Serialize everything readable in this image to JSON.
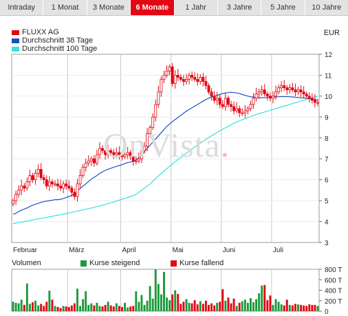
{
  "tabs": [
    {
      "label": "Intraday",
      "active": false
    },
    {
      "label": "1 Monat",
      "active": false
    },
    {
      "label": "3 Monate",
      "active": false
    },
    {
      "label": "6 Monate",
      "active": true
    },
    {
      "label": "1 Jahr",
      "active": false
    },
    {
      "label": "3 Jahre",
      "active": false
    },
    {
      "label": "5 Jahre",
      "active": false
    },
    {
      "label": "10 Jahre",
      "active": false
    }
  ],
  "currency": "EUR",
  "watermark": {
    "text": "OnVista",
    "suffix": "."
  },
  "legend": [
    {
      "label": "FLUXX AG",
      "color": "#e30613"
    },
    {
      "label": "Durchschnitt 38 Tage",
      "color": "#1f4fbf"
    },
    {
      "label": "Durchschnitt 100 Tage",
      "color": "#38e0e0"
    }
  ],
  "volume_section": {
    "label": "Volumen",
    "rising_label": "Kurse steigend",
    "rising_color": "#1a9a3a",
    "falling_label": "Kurse fallend",
    "falling_color": "#e30613"
  },
  "chart_data": {
    "type": "candlestick",
    "ylim": [
      3,
      12
    ],
    "yticks": [
      3,
      4,
      5,
      6,
      7,
      8,
      9,
      10,
      11,
      12
    ],
    "x_month_labels": [
      {
        "label": "Februar",
        "index": 0
      },
      {
        "label": "März",
        "index": 20
      },
      {
        "label": "April",
        "index": 39
      },
      {
        "label": "Mai",
        "index": 57
      },
      {
        "label": "Juni",
        "index": 75
      },
      {
        "label": "Juli",
        "index": 93
      }
    ],
    "num_days": 110,
    "close": [
      5.0,
      5.3,
      5.5,
      5.7,
      5.6,
      5.9,
      6.2,
      6.0,
      6.3,
      6.5,
      6.1,
      6.0,
      5.7,
      5.9,
      5.8,
      5.8,
      5.7,
      5.6,
      5.8,
      5.7,
      5.6,
      5.4,
      5.2,
      5.8,
      6.2,
      6.6,
      6.8,
      6.9,
      7.0,
      6.8,
      7.2,
      7.5,
      7.4,
      7.2,
      7.4,
      7.3,
      7.2,
      7.3,
      7.2,
      7.1,
      7.2,
      7.3,
      7.1,
      6.9,
      6.9,
      7.0,
      7.4,
      7.6,
      8.2,
      8.5,
      9.0,
      9.6,
      10.2,
      10.8,
      11.0,
      11.2,
      11.4,
      10.6,
      11.0,
      10.9,
      10.8,
      10.7,
      10.8,
      11.0,
      10.9,
      10.8,
      10.7,
      10.9,
      10.7,
      10.5,
      10.2,
      10.0,
      9.8,
      9.9,
      9.6,
      9.5,
      9.9,
      9.6,
      9.5,
      9.3,
      9.4,
      9.2,
      9.2,
      9.3,
      9.4,
      9.6,
      9.9,
      10.1,
      10.2,
      10.3,
      10.1,
      10.0,
      9.9,
      10.0,
      10.2,
      10.4,
      10.5,
      10.4,
      10.3,
      10.4,
      10.3,
      10.2,
      10.3,
      10.2,
      10.1,
      10.0,
      9.9,
      9.8,
      9.7,
      9.7
    ],
    "sma38": [
      4.35,
      4.4,
      4.48,
      4.55,
      4.6,
      4.65,
      4.72,
      4.78,
      4.83,
      4.87,
      4.92,
      4.95,
      4.98,
      5.0,
      5.02,
      5.05,
      5.05,
      5.07,
      5.1,
      5.15,
      5.2,
      5.25,
      5.35,
      5.47,
      5.58,
      5.7,
      5.8,
      5.92,
      6.03,
      6.12,
      6.2,
      6.3,
      6.38,
      6.45,
      6.5,
      6.55,
      6.6,
      6.64,
      6.68,
      6.72,
      6.78,
      6.82,
      6.85,
      6.88,
      6.95,
      7.05,
      7.18,
      7.35,
      7.5,
      7.65,
      7.8,
      7.95,
      8.1,
      8.25,
      8.4,
      8.55,
      8.67,
      8.78,
      8.88,
      8.98,
      9.08,
      9.18,
      9.28,
      9.36,
      9.44,
      9.52,
      9.6,
      9.68,
      9.76,
      9.84,
      9.9,
      9.96,
      10.0,
      10.04,
      10.08,
      10.12,
      10.15,
      10.17,
      10.18,
      10.17,
      10.15,
      10.12,
      10.08,
      10.04,
      10.0,
      9.97,
      9.95,
      9.93,
      9.92,
      9.92,
      9.92,
      9.93,
      9.94,
      9.95,
      9.96,
      9.97,
      9.98,
      9.98,
      9.98,
      9.97,
      9.96,
      9.94,
      9.93,
      9.92,
      9.91,
      9.89,
      9.88,
      9.86,
      9.84,
      9.82
    ],
    "sma100": [
      3.9,
      3.92,
      3.95,
      3.97,
      4.0,
      4.02,
      4.05,
      4.07,
      4.1,
      4.13,
      4.15,
      4.18,
      4.2,
      4.23,
      4.25,
      4.28,
      4.3,
      4.33,
      4.36,
      4.38,
      4.41,
      4.44,
      4.47,
      4.5,
      4.53,
      4.56,
      4.59,
      4.62,
      4.65,
      4.68,
      4.72,
      4.75,
      4.78,
      4.82,
      4.86,
      4.9,
      4.94,
      4.98,
      5.02,
      5.07,
      5.11,
      5.15,
      5.2,
      5.25,
      5.3,
      5.4,
      5.5,
      5.6,
      5.7,
      5.8,
      5.93,
      6.06,
      6.18,
      6.3,
      6.42,
      6.53,
      6.64,
      6.75,
      6.86,
      6.97,
      7.07,
      7.17,
      7.27,
      7.37,
      7.47,
      7.57,
      7.66,
      7.75,
      7.84,
      7.93,
      8.02,
      8.1,
      8.18,
      8.26,
      8.34,
      8.42,
      8.49,
      8.56,
      8.63,
      8.7,
      8.76,
      8.82,
      8.87,
      8.92,
      8.97,
      9.02,
      9.07,
      9.12,
      9.16,
      9.2,
      9.24,
      9.28,
      9.32,
      9.36,
      9.4,
      9.44,
      9.48,
      9.52,
      9.56,
      9.6,
      9.64,
      9.68,
      9.72,
      9.76,
      9.8,
      9.84,
      9.88,
      9.92,
      9.96,
      10.0
    ],
    "volume_ylim": [
      0,
      800000
    ],
    "volume_ticks": [
      {
        "value": 0,
        "label": "0"
      },
      {
        "value": 200000,
        "label": "200 T"
      },
      {
        "value": 400000,
        "label": "400 T"
      },
      {
        "value": 600000,
        "label": "600 T"
      },
      {
        "value": 800000,
        "label": "800 T"
      }
    ],
    "volume": [
      180000,
      160000,
      150000,
      220000,
      120000,
      530000,
      140000,
      170000,
      200000,
      110000,
      140000,
      100000,
      180000,
      390000,
      220000,
      100000,
      80000,
      60000,
      100000,
      90000,
      80000,
      110000,
      150000,
      430000,
      100000,
      230000,
      380000,
      120000,
      150000,
      110000,
      160000,
      100000,
      90000,
      120000,
      180000,
      110000,
      90000,
      150000,
      100000,
      80000,
      160000,
      70000,
      90000,
      100000,
      380000,
      180000,
      310000,
      120000,
      200000,
      480000,
      240000,
      860000,
      520000,
      320000,
      750000,
      260000,
      210000,
      320000,
      400000,
      330000,
      140000,
      180000,
      230000,
      160000,
      150000,
      210000,
      130000,
      190000,
      140000,
      200000,
      120000,
      150000,
      110000,
      160000,
      180000,
      420000,
      200000,
      260000,
      150000,
      240000,
      100000,
      160000,
      190000,
      220000,
      160000,
      250000,
      170000,
      230000,
      340000,
      490000,
      500000,
      210000,
      300000,
      120000,
      230000,
      180000,
      130000,
      110000,
      220000,
      120000,
      110000,
      140000,
      130000,
      120000,
      110000,
      100000,
      130000,
      120000,
      120000,
      100000
    ]
  }
}
